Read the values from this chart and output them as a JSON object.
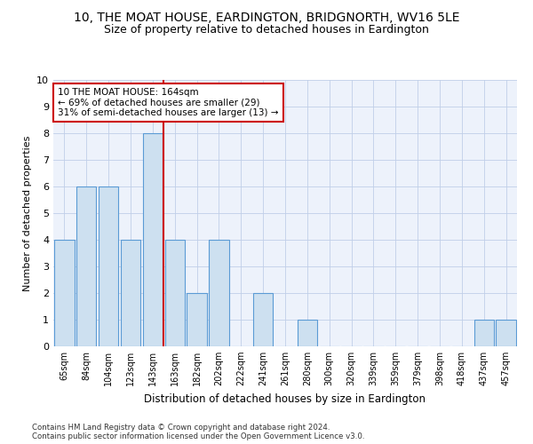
{
  "title": "10, THE MOAT HOUSE, EARDINGTON, BRIDGNORTH, WV16 5LE",
  "subtitle": "Size of property relative to detached houses in Eardington",
  "xlabel": "Distribution of detached houses by size in Eardington",
  "ylabel": "Number of detached properties",
  "categories": [
    "65sqm",
    "84sqm",
    "104sqm",
    "123sqm",
    "143sqm",
    "163sqm",
    "182sqm",
    "202sqm",
    "222sqm",
    "241sqm",
    "261sqm",
    "280sqm",
    "300sqm",
    "320sqm",
    "339sqm",
    "359sqm",
    "379sqm",
    "398sqm",
    "418sqm",
    "437sqm",
    "457sqm"
  ],
  "values": [
    4,
    6,
    6,
    4,
    8,
    4,
    2,
    4,
    0,
    2,
    0,
    1,
    0,
    0,
    0,
    0,
    0,
    0,
    0,
    1,
    1
  ],
  "bar_color": "#cde0f0",
  "bar_edgecolor": "#5b9bd5",
  "vline_x_index": 4.5,
  "vline_color": "#cc0000",
  "annotation_line1": "10 THE MOAT HOUSE: 164sqm",
  "annotation_line2": "← 69% of detached houses are smaller (29)",
  "annotation_line3": "31% of semi-detached houses are larger (13) →",
  "annotation_box_edgecolor": "#cc0000",
  "ylim": [
    0,
    10
  ],
  "yticks": [
    0,
    1,
    2,
    3,
    4,
    5,
    6,
    7,
    8,
    9,
    10
  ],
  "footer1": "Contains HM Land Registry data © Crown copyright and database right 2024.",
  "footer2": "Contains public sector information licensed under the Open Government Licence v3.0.",
  "plot_bg_color": "#edf2fb",
  "grid_color": "#c0cfe8",
  "title_fontsize": 10,
  "subtitle_fontsize": 9
}
